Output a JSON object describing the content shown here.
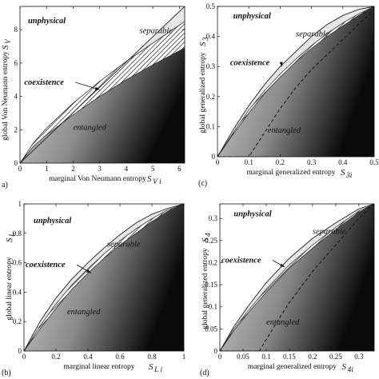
{
  "colors": {
    "unphysical": "#ffffff",
    "separable": "#e6e6e6",
    "coexistence_hatch": "#222222",
    "entangled_light": "#d8d8d8",
    "entangled_dark": "#0a0a0a",
    "boundary": "#222222"
  },
  "chart_data": [
    {
      "type": "area",
      "panel_label": "a)",
      "xlabel": "marginal Von Neumann entropy",
      "xsym": "S",
      "xsub": "V i",
      "ylabel": "global Von Neumann entropy",
      "ysym": "S",
      "ysub": "V",
      "xlim": [
        0,
        6.2
      ],
      "ylim": [
        0,
        9.4
      ],
      "xticks": [
        0,
        1,
        2,
        3,
        4,
        5,
        6
      ],
      "yticks": [
        0,
        2,
        4,
        6,
        8
      ],
      "xticklabels": [
        "0",
        "1",
        "2",
        "3",
        "4",
        "5",
        "6"
      ],
      "yticklabels": [
        "0",
        "2",
        "4",
        "6",
        "8"
      ],
      "boundaries": {
        "upper": [
          [
            0,
            0
          ],
          [
            6.2,
            9.4
          ]
        ],
        "separable_lower": [
          [
            0,
            0
          ],
          [
            0.5,
            1.2
          ],
          [
            1,
            2.1
          ],
          [
            2,
            3.6
          ],
          [
            3,
            4.9
          ],
          [
            4,
            6.1
          ],
          [
            5,
            7.2
          ],
          [
            6.2,
            8.5
          ]
        ],
        "entangled_upper": [
          [
            0,
            0
          ],
          [
            0.5,
            1.0
          ],
          [
            1,
            1.7
          ],
          [
            2,
            2.9
          ],
          [
            3,
            4.0
          ],
          [
            4,
            5.0
          ],
          [
            5,
            5.9
          ],
          [
            6.2,
            6.9
          ]
        ],
        "lower": [
          [
            0,
            0
          ],
          [
            6.2,
            0
          ]
        ]
      },
      "labels": {
        "unphysical": "unphysical",
        "separable": "separable",
        "coexistence": "coexistence",
        "entangled": "entangled"
      },
      "annotations": {
        "unphysical_at": [
          0.3,
          8.4
        ],
        "separable_at": [
          4.5,
          7.8
        ],
        "coexistence_at": [
          0.1,
          4.7
        ],
        "coexistence_arrow_to": [
          3.0,
          4.4
        ],
        "entangled_at": [
          2.0,
          2.0
        ]
      }
    },
    {
      "type": "area",
      "panel_label": "(c)",
      "xlabel": "marginal generalized entropy",
      "xsym": "S",
      "xsub": "3i",
      "ylabel": "global generalized entropy",
      "ysym": "S",
      "ysub": "3",
      "xlim": [
        0,
        0.5
      ],
      "ylim": [
        0,
        0.5
      ],
      "xticks": [
        0,
        0.1,
        0.2,
        0.3,
        0.4,
        0.5
      ],
      "yticks": [
        0,
        0.1,
        0.2,
        0.3,
        0.4,
        0.5
      ],
      "xticklabels": [
        "0",
        "0.1",
        "0.2",
        "0.3",
        "0.4",
        "0.5"
      ],
      "yticklabels": [
        "0",
        "0.1",
        "0.2",
        "0.3",
        "0.4",
        "0.5"
      ],
      "boundaries": {
        "upper": [
          [
            0,
            0
          ],
          [
            0.05,
            0.09
          ],
          [
            0.1,
            0.17
          ],
          [
            0.15,
            0.24
          ],
          [
            0.2,
            0.3
          ],
          [
            0.25,
            0.35
          ],
          [
            0.3,
            0.4
          ],
          [
            0.35,
            0.44
          ],
          [
            0.4,
            0.47
          ],
          [
            0.45,
            0.49
          ],
          [
            0.5,
            0.5
          ]
        ],
        "separable_lower": [
          [
            0,
            0
          ],
          [
            0.05,
            0.08
          ],
          [
            0.1,
            0.155
          ],
          [
            0.15,
            0.22
          ],
          [
            0.2,
            0.275
          ],
          [
            0.25,
            0.325
          ],
          [
            0.3,
            0.37
          ],
          [
            0.35,
            0.41
          ],
          [
            0.4,
            0.445
          ],
          [
            0.45,
            0.475
          ],
          [
            0.5,
            0.5
          ]
        ],
        "entangled_upper": [
          [
            0,
            0
          ],
          [
            0.05,
            0.075
          ],
          [
            0.1,
            0.145
          ],
          [
            0.15,
            0.21
          ],
          [
            0.2,
            0.265
          ],
          [
            0.25,
            0.315
          ],
          [
            0.3,
            0.36
          ],
          [
            0.35,
            0.4
          ],
          [
            0.4,
            0.435
          ],
          [
            0.45,
            0.47
          ],
          [
            0.5,
            0.5
          ]
        ],
        "dashed": [
          [
            0,
            0
          ],
          [
            0.1,
            0
          ],
          [
            0.15,
            0.08
          ],
          [
            0.2,
            0.16
          ],
          [
            0.25,
            0.23
          ],
          [
            0.3,
            0.29
          ],
          [
            0.35,
            0.34
          ],
          [
            0.4,
            0.39
          ],
          [
            0.45,
            0.44
          ],
          [
            0.5,
            0.49
          ]
        ],
        "lower": [
          [
            0,
            0
          ],
          [
            0.5,
            0
          ]
        ]
      },
      "labels": {
        "unphysical": "unphysical",
        "separable": "separable",
        "coexistence": "coexistence",
        "entangled": "entangled"
      },
      "annotations": {
        "unphysical_at": [
          0.05,
          0.46
        ],
        "separable_at": [
          0.25,
          0.4
        ],
        "coexistence_at": [
          0.035,
          0.305
        ],
        "coexistence_arrow_to": [
          0.205,
          0.3
        ],
        "entangled_at": [
          0.16,
          0.08
        ]
      }
    },
    {
      "type": "area",
      "panel_label": "(b)",
      "xlabel": "marginal linear entropy",
      "xsym": "S",
      "xsub": "L i",
      "ylabel": "global linear entropy",
      "ysym": "S",
      "ysub": "L",
      "xlim": [
        0,
        1
      ],
      "ylim": [
        0,
        1
      ],
      "xticks": [
        0,
        0.2,
        0.4,
        0.6,
        0.8,
        1
      ],
      "yticks": [
        0,
        0.2,
        0.4,
        0.6,
        0.8,
        1
      ],
      "xticklabels": [
        "0",
        "0.2",
        "0.4",
        "0.6",
        "0.8",
        "1"
      ],
      "yticklabels": [
        "0",
        "0.2",
        "0.4",
        "0.6",
        "0.8",
        "1"
      ],
      "boundaries": {
        "upper": [
          [
            0,
            0
          ],
          [
            0.1,
            0.2
          ],
          [
            0.2,
            0.36
          ],
          [
            0.3,
            0.49
          ],
          [
            0.4,
            0.6
          ],
          [
            0.5,
            0.7
          ],
          [
            0.6,
            0.79
          ],
          [
            0.7,
            0.87
          ],
          [
            0.8,
            0.93
          ],
          [
            0.9,
            0.97
          ],
          [
            1,
            1
          ]
        ],
        "separable_lower": [
          [
            0,
            0
          ],
          [
            0.1,
            0.17
          ],
          [
            0.2,
            0.32
          ],
          [
            0.3,
            0.45
          ],
          [
            0.4,
            0.56
          ],
          [
            0.5,
            0.66
          ],
          [
            0.6,
            0.75
          ],
          [
            0.7,
            0.83
          ],
          [
            0.8,
            0.9
          ],
          [
            0.9,
            0.96
          ],
          [
            1,
            1
          ]
        ],
        "entangled_upper": [
          [
            0,
            0
          ],
          [
            0.1,
            0.15
          ],
          [
            0.2,
            0.29
          ],
          [
            0.3,
            0.42
          ],
          [
            0.4,
            0.53
          ],
          [
            0.5,
            0.63
          ],
          [
            0.6,
            0.72
          ],
          [
            0.7,
            0.8
          ],
          [
            0.8,
            0.88
          ],
          [
            0.9,
            0.95
          ],
          [
            1,
            1
          ]
        ],
        "lower": [
          [
            0,
            0
          ],
          [
            1,
            0
          ]
        ]
      },
      "labels": {
        "unphysical": "unphysical",
        "separable": "separable",
        "coexistence": "coexistence",
        "entangled": "entangled"
      },
      "annotations": {
        "unphysical_at": [
          0.06,
          0.87
        ],
        "separable_at": [
          0.52,
          0.71
        ],
        "coexistence_at": [
          0.0,
          0.57
        ],
        "coexistence_arrow_to": [
          0.42,
          0.53
        ],
        "entangled_at": [
          0.27,
          0.25
        ]
      }
    },
    {
      "type": "area",
      "panel_label": "(d)",
      "xlabel": "marginal generalized entropy",
      "xsym": "S",
      "xsub": "4i",
      "ylabel": "global generalized entropy",
      "ysym": "S",
      "ysub": "4",
      "xlim": [
        0,
        0.333
      ],
      "ylim": [
        0,
        0.333
      ],
      "xticks": [
        0,
        0.05,
        0.1,
        0.15,
        0.2,
        0.25,
        0.3
      ],
      "yticks": [
        0,
        0.05,
        0.1,
        0.15,
        0.2,
        0.25,
        0.3
      ],
      "xticklabels": [
        "0",
        "0.05",
        "0.1",
        "0.15",
        "0.2",
        "0.25",
        "0.3"
      ],
      "yticklabels": [
        "0",
        "0.05",
        "0.1",
        "0.15",
        "0.2",
        "0.25",
        "0.3"
      ],
      "boundaries": {
        "upper": [
          [
            0,
            0
          ],
          [
            0.03,
            0.055
          ],
          [
            0.06,
            0.1
          ],
          [
            0.1,
            0.155
          ],
          [
            0.15,
            0.21
          ],
          [
            0.2,
            0.255
          ],
          [
            0.25,
            0.29
          ],
          [
            0.3,
            0.322
          ],
          [
            0.333,
            0.333
          ]
        ],
        "separable_lower": [
          [
            0,
            0
          ],
          [
            0.03,
            0.05
          ],
          [
            0.06,
            0.09
          ],
          [
            0.1,
            0.14
          ],
          [
            0.15,
            0.195
          ],
          [
            0.2,
            0.24
          ],
          [
            0.25,
            0.28
          ],
          [
            0.3,
            0.317
          ],
          [
            0.333,
            0.333
          ]
        ],
        "entangled_upper": [
          [
            0,
            0
          ],
          [
            0.03,
            0.046
          ],
          [
            0.06,
            0.085
          ],
          [
            0.1,
            0.133
          ],
          [
            0.15,
            0.188
          ],
          [
            0.2,
            0.233
          ],
          [
            0.25,
            0.275
          ],
          [
            0.3,
            0.314
          ],
          [
            0.333,
            0.333
          ]
        ],
        "dashed": [
          [
            0,
            0
          ],
          [
            0.085,
            0
          ],
          [
            0.12,
            0.06
          ],
          [
            0.15,
            0.11
          ],
          [
            0.2,
            0.18
          ],
          [
            0.25,
            0.24
          ],
          [
            0.3,
            0.3
          ],
          [
            0.333,
            0.333
          ]
        ],
        "lower": [
          [
            0,
            0
          ],
          [
            0.333,
            0
          ]
        ]
      },
      "labels": {
        "unphysical": "unphysical",
        "separable": "separable",
        "coexistence": "coexistence",
        "entangled": "entangled"
      },
      "annotations": {
        "unphysical_at": [
          0.03,
          0.305
        ],
        "separable_at": [
          0.2,
          0.265
        ],
        "coexistence_at": [
          0.0,
          0.2
        ],
        "coexistence_arrow_to": [
          0.14,
          0.19
        ],
        "entangled_at": [
          0.1,
          0.06
        ]
      }
    }
  ]
}
